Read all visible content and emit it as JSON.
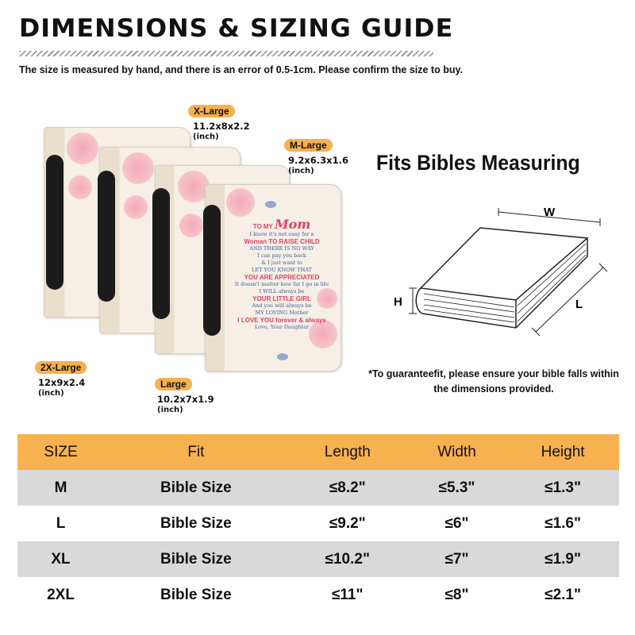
{
  "header": {
    "title": "DIMENSIONS & SIZING GUIDE",
    "subtitle": "The size is measured by hand, and there is an error of 0.5-1cm. Please confirm the size to buy."
  },
  "sizes": [
    {
      "label": "X-Large",
      "dims": "11.2x8x2.2",
      "unit": "(inch)"
    },
    {
      "label": "M-Large",
      "dims": "9.2x6.3x1.6",
      "unit": "(inch)"
    },
    {
      "label": "2X-Large",
      "dims": "12x9x2.4",
      "unit": "(inch)"
    },
    {
      "label": "Large",
      "dims": "10.2x7x1.9",
      "unit": "(inch)"
    }
  ],
  "cover": {
    "to": "TO MY",
    "mom": "Mom",
    "lines": [
      "I know it's not easy for a",
      "Woman TO RAISE CHILD",
      "AND THERE IS NO WAY",
      "I can pay you back",
      "& I just want to",
      "LET YOU KNOW THAT",
      "YOU ARE APPRECIATED",
      "It doesn't matter how far I go in life",
      "I WILL always be",
      "YOUR LITTLE GIRL",
      "And you will always be",
      "MY LOVING Mother",
      "I LOVE YOU forever & always",
      "Love, Your Daughter"
    ]
  },
  "diagram": {
    "title": "Fits Bibles Measuring",
    "w": "W",
    "h": "H",
    "l": "L",
    "note": "*To guaranteefit, please ensure your bible falls within the dimensions provided."
  },
  "table": {
    "headers": [
      "SIZE",
      "Fit",
      "Length",
      "Width",
      "Height"
    ],
    "rows": [
      [
        "M",
        "Bible Size",
        "≤8.2\"",
        "≤5.3\"",
        "≤1.3\""
      ],
      [
        "L",
        "Bible Size",
        "≤9.2\"",
        "≤6\"",
        "≤1.6\""
      ],
      [
        "XL",
        "Bible Size",
        "≤10.2\"",
        "≤7\"",
        "≤1.9\""
      ],
      [
        "2XL",
        "Bible Size",
        "≤11\"",
        "≤8\"",
        "≤2.1\""
      ]
    ]
  },
  "colors": {
    "accent": "#f8b14f",
    "row_alt": "#d9d9d9"
  }
}
